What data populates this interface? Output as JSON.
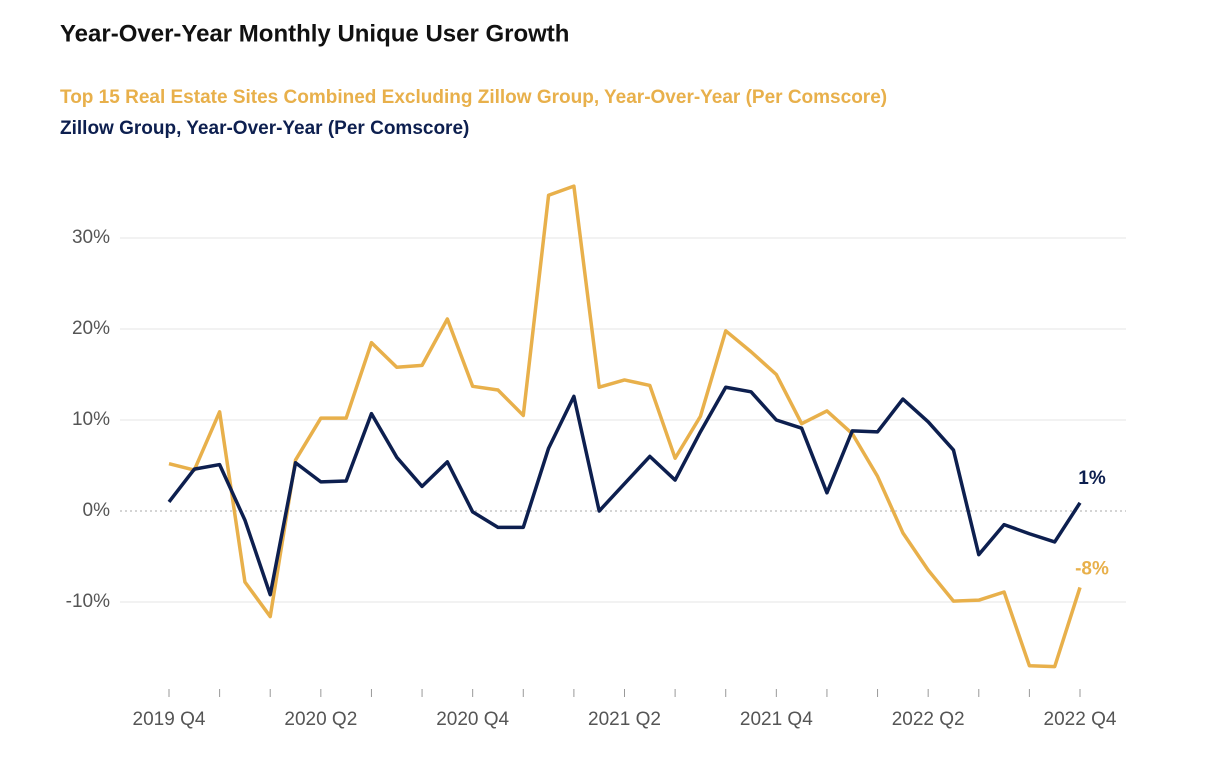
{
  "chart_data": {
    "type": "line",
    "title": "Year-Over-Year Monthly Unique User Growth",
    "categories": [
      "2019 Q4",
      null,
      null,
      null,
      null,
      null,
      "2020 Q2",
      null,
      null,
      null,
      null,
      null,
      "2020 Q4",
      null,
      null,
      null,
      null,
      null,
      "2021 Q2",
      null,
      null,
      null,
      null,
      null,
      "2021 Q4",
      null,
      null,
      null,
      null,
      null,
      "2022 Q2",
      null,
      null,
      null,
      null,
      null,
      "2022 Q4"
    ],
    "series": [
      {
        "name": "Top 15 Real Estate Sites Combined Excluding Zillow Group, Year-Over-Year (Per Comscore)",
        "color": "#E8B04B",
        "values": [
          5.2,
          4.5,
          10.9,
          -7.8,
          -11.6,
          5.6,
          10.2,
          10.2,
          18.5,
          15.8,
          16.0,
          21.1,
          13.7,
          13.3,
          10.5,
          34.7,
          35.7,
          13.6,
          14.4,
          13.8,
          5.8,
          10.4,
          19.8,
          17.5,
          15.0,
          9.6,
          11.0,
          8.5,
          3.8,
          -2.4,
          -6.5,
          -9.9,
          -9.8,
          -8.9,
          -17.0,
          -17.1,
          -8.4
        ],
        "value_labels": [
          null,
          null,
          null,
          null,
          null,
          null,
          null,
          null,
          null,
          null,
          null,
          null,
          null,
          null,
          null,
          null,
          null,
          null,
          null,
          null,
          null,
          null,
          null,
          null,
          null,
          null,
          null,
          null,
          null,
          null,
          null,
          null,
          null,
          null,
          null,
          null,
          "-8%"
        ]
      },
      {
        "name": "Zillow Group, Year-Over-Year (Per Comscore)",
        "color": "#0D1F4F",
        "values": [
          1.0,
          4.6,
          5.1,
          -1.0,
          -9.2,
          5.3,
          3.2,
          3.3,
          10.7,
          5.9,
          2.7,
          5.4,
          -0.1,
          -1.8,
          -1.8,
          6.9,
          12.6,
          0.0,
          3.0,
          6.0,
          3.4,
          8.7,
          13.6,
          13.1,
          10.0,
          9.1,
          2.0,
          8.8,
          8.7,
          12.3,
          9.8,
          6.7,
          -4.8,
          -1.5,
          -2.5,
          -3.4,
          0.9
        ],
        "value_labels": [
          null,
          null,
          null,
          null,
          null,
          null,
          null,
          null,
          null,
          null,
          null,
          null,
          null,
          null,
          null,
          null,
          null,
          null,
          null,
          null,
          null,
          null,
          null,
          null,
          null,
          null,
          null,
          null,
          null,
          null,
          null,
          null,
          null,
          null,
          null,
          null,
          "1%"
        ]
      }
    ],
    "ylim": [
      -20,
      36
    ],
    "yticks": [
      {
        "value": -10,
        "label": "-10%"
      },
      {
        "value": 0,
        "label": "0%"
      },
      {
        "value": 10,
        "label": "10%"
      },
      {
        "value": 20,
        "label": "20%"
      },
      {
        "value": 30,
        "label": "30%"
      }
    ],
    "grid": true
  }
}
